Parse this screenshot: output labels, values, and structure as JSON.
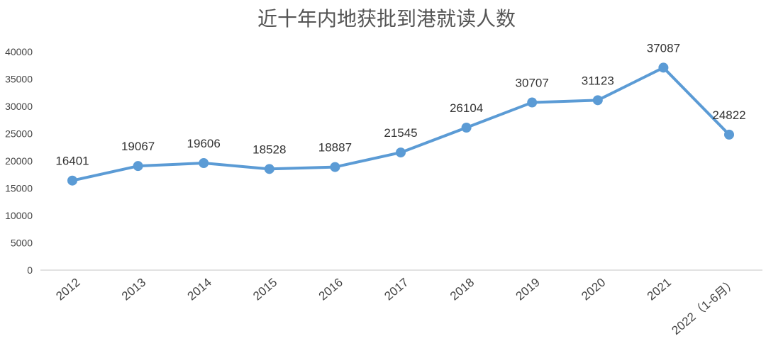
{
  "chart_data": {
    "type": "line",
    "title": "近十年内地获批到港就读人数",
    "categories": [
      "2012",
      "2013",
      "2014",
      "2015",
      "2016",
      "2017",
      "2018",
      "2019",
      "2020",
      "2021",
      "2022（1-6月）"
    ],
    "series": [
      {
        "values": [
          16401,
          19067,
          19606,
          18528,
          18887,
          21545,
          26104,
          30707,
          31123,
          37087,
          24822
        ]
      }
    ],
    "yticks": [
      "0",
      "5000",
      "10000",
      "15000",
      "20000",
      "25000",
      "30000",
      "35000",
      "40000"
    ],
    "ylim": [
      0,
      40000
    ],
    "grid": false,
    "legend": "none",
    "colors": {
      "line": "#5b9bd5",
      "axis": "#d9d9d9"
    }
  }
}
